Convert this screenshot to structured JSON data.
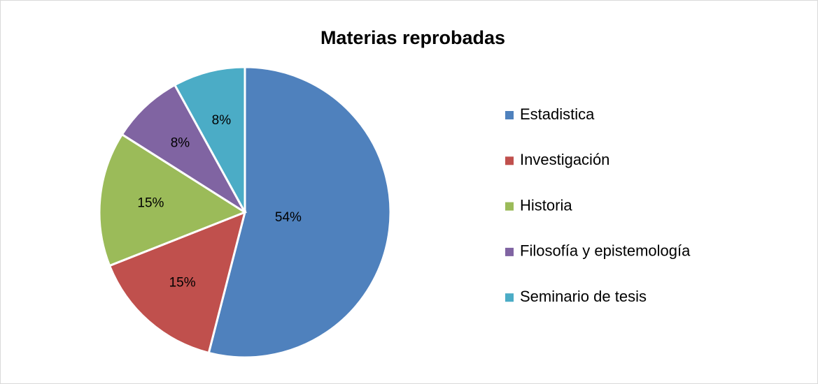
{
  "chart_data": {
    "type": "pie",
    "title": "Materias reprobadas",
    "categories": [
      "Estadistica",
      "Investigación",
      "Historia",
      "Filosofía y epistemología",
      "Seminario de tesis"
    ],
    "values": [
      54,
      15,
      15,
      8,
      8
    ],
    "value_labels": [
      "54%",
      "15%",
      "15%",
      "8%",
      "8%"
    ],
    "colors": [
      "#4f81bd",
      "#c0504d",
      "#9bbb59",
      "#8064a2",
      "#4bacc6"
    ],
    "legend": "right"
  }
}
